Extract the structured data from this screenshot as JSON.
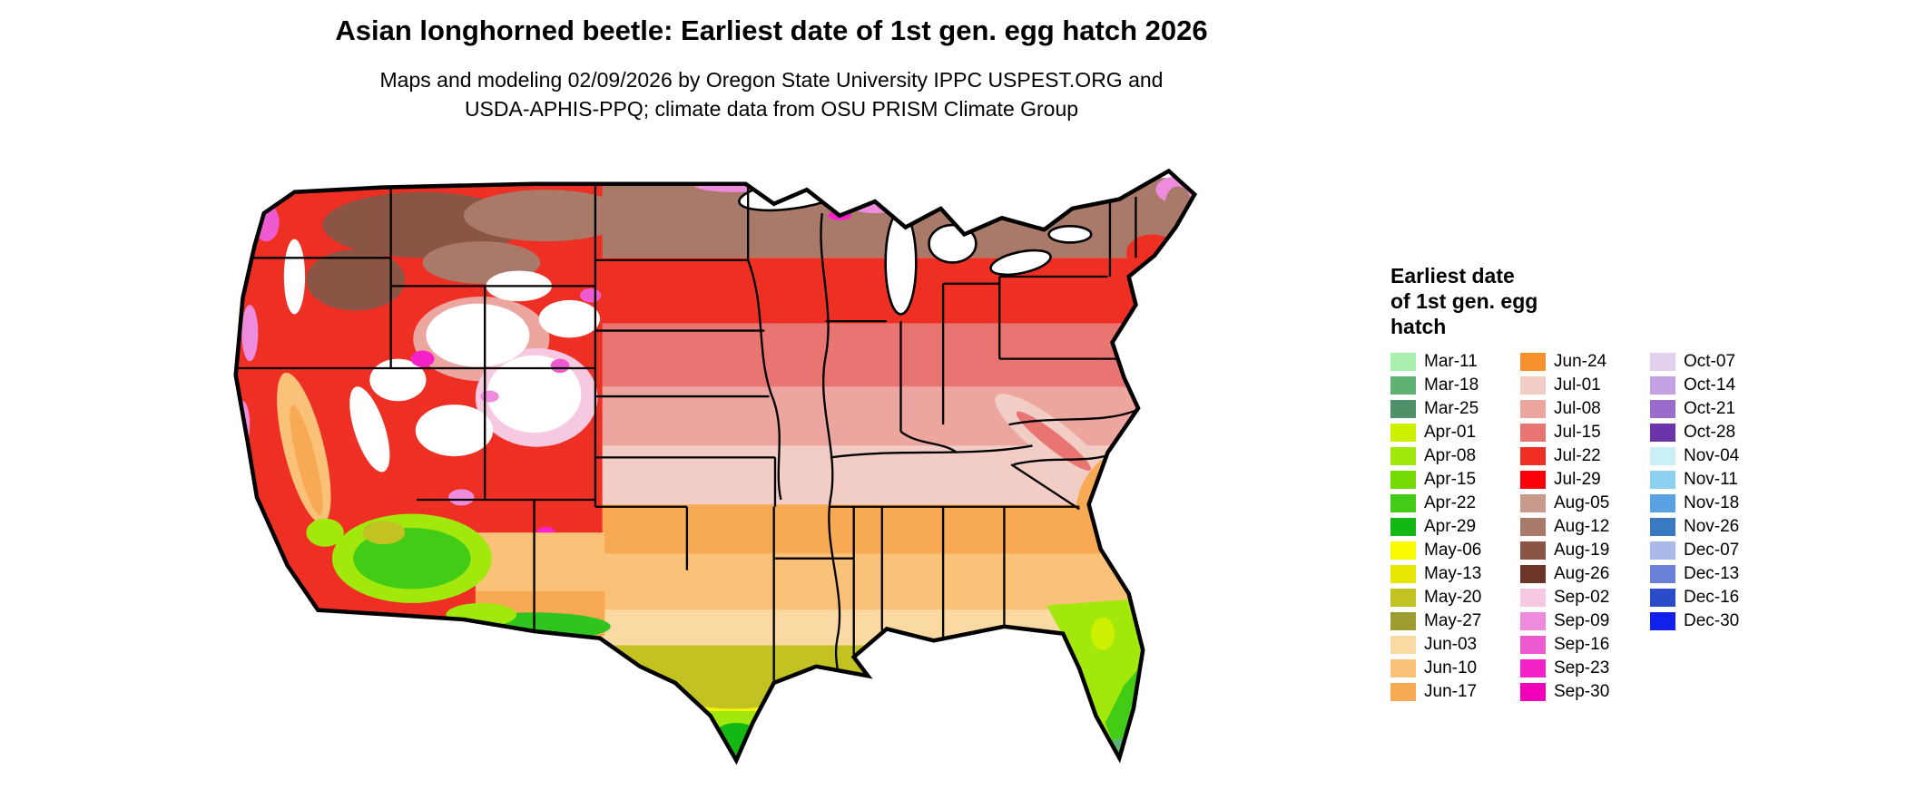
{
  "header": {
    "title": "Asian longhorned beetle: Earliest date of 1st gen. egg hatch 2026",
    "subtitle_line1": "Maps and modeling 02/09/2026 by Oregon State University IPPC USPEST.ORG and",
    "subtitle_line2": "USDA-APHIS-PPQ; climate data from OSU PRISM Climate Group"
  },
  "legend": {
    "title_lines": [
      "Earliest date",
      "of 1st gen. egg",
      "hatch"
    ],
    "columns": [
      {
        "items": [
          {
            "label": "Mar-11",
            "color": "#A9F0AF"
          },
          {
            "label": "Mar-18",
            "color": "#5FB372"
          },
          {
            "label": "Mar-25",
            "color": "#4E9168"
          },
          {
            "label": "Apr-01",
            "color": "#CDF000"
          },
          {
            "label": "Apr-08",
            "color": "#A3E80C"
          },
          {
            "label": "Apr-15",
            "color": "#74DC04"
          },
          {
            "label": "Apr-22",
            "color": "#42CC16"
          },
          {
            "label": "Apr-29",
            "color": "#14B814"
          },
          {
            "label": "May-06",
            "color": "#FAFA00"
          },
          {
            "label": "May-13",
            "color": "#E6E600"
          },
          {
            "label": "May-20",
            "color": "#C2C222"
          },
          {
            "label": "May-27",
            "color": "#9C9C30"
          },
          {
            "label": "Jun-03",
            "color": "#FAD9A2"
          },
          {
            "label": "Jun-10",
            "color": "#FAC178"
          },
          {
            "label": "Jun-17",
            "color": "#F8A953"
          }
        ]
      },
      {
        "items": [
          {
            "label": "Jun-24",
            "color": "#F6922D"
          },
          {
            "label": "Jul-01",
            "color": "#F2CDC5"
          },
          {
            "label": "Jul-08",
            "color": "#EDA59F"
          },
          {
            "label": "Jul-15",
            "color": "#E87571"
          },
          {
            "label": "Jul-22",
            "color": "#EE3024"
          },
          {
            "label": "Jul-29",
            "color": "#FB0007"
          },
          {
            "label": "Aug-05",
            "color": "#C89A8C"
          },
          {
            "label": "Aug-12",
            "color": "#A97A6A"
          },
          {
            "label": "Aug-19",
            "color": "#8B5545"
          },
          {
            "label": "Aug-26",
            "color": "#6C3527"
          },
          {
            "label": "Sep-02",
            "color": "#F6C9E1"
          },
          {
            "label": "Sep-09",
            "color": "#EE8BDC"
          },
          {
            "label": "Sep-16",
            "color": "#EE5BD0"
          },
          {
            "label": "Sep-23",
            "color": "#F522CA"
          },
          {
            "label": "Sep-30",
            "color": "#F000B8"
          }
        ]
      },
      {
        "items": [
          {
            "label": "Oct-07",
            "color": "#E2D2EE"
          },
          {
            "label": "Oct-14",
            "color": "#C2A2E2"
          },
          {
            "label": "Oct-21",
            "color": "#9B6BCD"
          },
          {
            "label": "Oct-28",
            "color": "#6B35A9"
          },
          {
            "label": "Nov-04",
            "color": "#CAF0F6"
          },
          {
            "label": "Nov-11",
            "color": "#8DD1F1"
          },
          {
            "label": "Nov-18",
            "color": "#59A1E1"
          },
          {
            "label": "Nov-26",
            "color": "#3979C1"
          },
          {
            "label": "Dec-07",
            "color": "#A9B9E9"
          },
          {
            "label": "Dec-13",
            "color": "#6B81D9"
          },
          {
            "label": "Dec-16",
            "color": "#2B4BC9"
          },
          {
            "label": "Dec-30",
            "color": "#1121E9"
          }
        ]
      }
    ]
  },
  "map": {
    "region_shown": "Contiguous United States",
    "border_color": "#000000",
    "no_data_color": "#FFFFFF"
  }
}
